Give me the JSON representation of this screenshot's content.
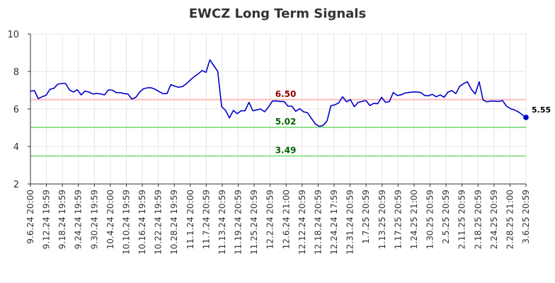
{
  "chart_data": {
    "type": "line",
    "title": "EWCZ Long Term Signals",
    "xlabel": "",
    "ylabel": "",
    "ylim": [
      2,
      10
    ],
    "yticks": [
      2,
      4,
      6,
      8,
      10
    ],
    "grid": true,
    "tick_labels": [
      "9.6.24 20:00",
      "9.12.24 19:59",
      "9.18.24 19:59",
      "9.24.24 19:59",
      "9.30.24 19:59",
      "10.4.24 20:00",
      "10.10.24 19:59",
      "10.16.24 19:59",
      "10.22.24 19:59",
      "10.28.24 19:59",
      "11.1.24 20:00",
      "11.7.24 20:59",
      "11.13.24 20:59",
      "11.19.24 20:59",
      "11.25.24 20:59",
      "12.2.24 20:59",
      "12.6.24 21:00",
      "12.12.24 20:59",
      "12.18.24 20:59",
      "12.24.24 17:59",
      "12.31.24 20:59",
      "1.7.25 20:59",
      "1.13.25 20:59",
      "1.17.25 20:59",
      "1.24.25 21:00",
      "1.30.25 20:59",
      "2.5.25 20:59",
      "2.11.25 20:59",
      "2.18.25 20:59",
      "2.24.25 20:59",
      "2.28.25 21:00",
      "3.6.25 20:59"
    ],
    "line_color": "#0000cc",
    "series": [
      {
        "values": [
          6.95,
          6.98,
          6.55,
          6.65,
          6.73,
          7.05,
          7.1,
          7.32,
          7.36,
          7.36,
          7.02,
          6.9,
          7.03,
          6.75,
          6.96,
          6.9,
          6.8,
          6.83,
          6.8,
          6.75,
          7.02,
          7.0,
          6.87,
          6.87,
          6.82,
          6.8,
          6.53,
          6.62,
          6.9,
          7.08,
          7.13,
          7.13,
          7.05,
          6.92,
          6.82,
          6.82,
          7.3,
          7.21,
          7.16,
          7.2,
          7.35,
          7.55,
          7.73,
          7.87,
          8.05,
          7.95,
          8.62,
          8.3,
          8.0,
          6.12,
          5.93,
          5.52,
          5.92,
          5.75,
          5.9,
          5.9,
          6.35,
          5.9,
          5.95,
          6.0,
          5.85,
          6.1,
          6.42,
          6.43,
          6.4,
          6.4,
          6.15,
          6.15,
          5.87,
          6.02,
          5.85,
          5.8,
          5.5,
          5.2,
          5.07,
          5.12,
          5.35,
          6.17,
          6.22,
          6.32,
          6.65,
          6.38,
          6.5,
          6.12,
          6.35,
          6.4,
          6.45,
          6.18,
          6.3,
          6.28,
          6.62,
          6.35,
          6.4,
          6.88,
          6.72,
          6.75,
          6.85,
          6.88,
          6.9,
          6.9,
          6.88,
          6.72,
          6.7,
          6.78,
          6.65,
          6.75,
          6.62,
          6.9,
          6.98,
          6.82,
          7.2,
          7.35,
          7.45,
          7.05,
          6.8,
          7.45,
          6.48,
          6.38,
          6.42,
          6.42,
          6.4,
          6.45,
          6.15,
          6.02,
          5.95,
          5.85,
          5.7,
          5.55
        ]
      }
    ],
    "levels": [
      {
        "value": 6.5,
        "label": "6.50",
        "line_color": "#ffbbbb",
        "text_color": "#8b0000"
      },
      {
        "value": 5.02,
        "label": "5.02",
        "line_color": "#90e090",
        "text_color": "#006400"
      },
      {
        "value": 3.49,
        "label": "3.49",
        "line_color": "#90e090",
        "text_color": "#006400"
      }
    ],
    "last_value": {
      "value": 5.55,
      "label": "5.55"
    }
  }
}
